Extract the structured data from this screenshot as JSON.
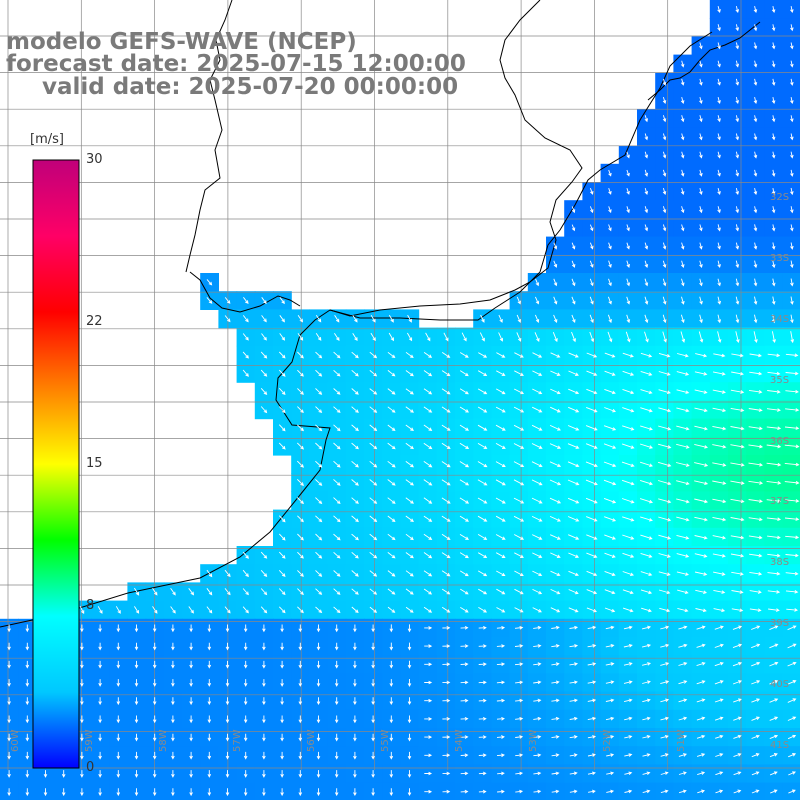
{
  "title": {
    "line1": "modelo GEFS-WAVE (NCEP)",
    "line2": "forecast date: 2025-07-15 12:00:00",
    "line3": "valid date: 2025-07-20 00:00:00"
  },
  "colorbar": {
    "unit": "[m/s]",
    "ticks": [
      "30",
      "22",
      "15",
      "8",
      "0"
    ],
    "tick_values": [
      30,
      22,
      15,
      8,
      0
    ],
    "range": [
      0,
      30
    ],
    "colors": [
      "#0000ff",
      "#00c8ff",
      "#00ffff",
      "#00ff00",
      "#ffff00",
      "#ff8000",
      "#ff0000",
      "#ff0066",
      "#c0007a"
    ]
  },
  "map": {
    "lat_range_south": [
      30,
      42
    ],
    "lon_range_west": [
      50,
      60
    ],
    "lat_labels": [
      "32S",
      "33S",
      "34S",
      "35S",
      "36S",
      "37S",
      "38S",
      "39S",
      "40S",
      "41S"
    ],
    "lat_label_values": [
      32,
      33,
      34,
      35,
      36,
      37,
      38,
      39,
      40,
      41
    ],
    "lon_labels": [
      "60W",
      "59W",
      "58W",
      "57W",
      "56W",
      "55W",
      "54W",
      "53W",
      "52W",
      "51W"
    ],
    "lon_label_values": [
      60,
      59,
      58,
      57,
      56,
      55,
      54,
      53,
      52,
      51
    ],
    "grid": true,
    "colors": {
      "land": "#ffffff",
      "coast": "#000000",
      "grid": "#888888",
      "arrow": "#ffffff",
      "title": "#7a7a7a"
    }
  }
}
